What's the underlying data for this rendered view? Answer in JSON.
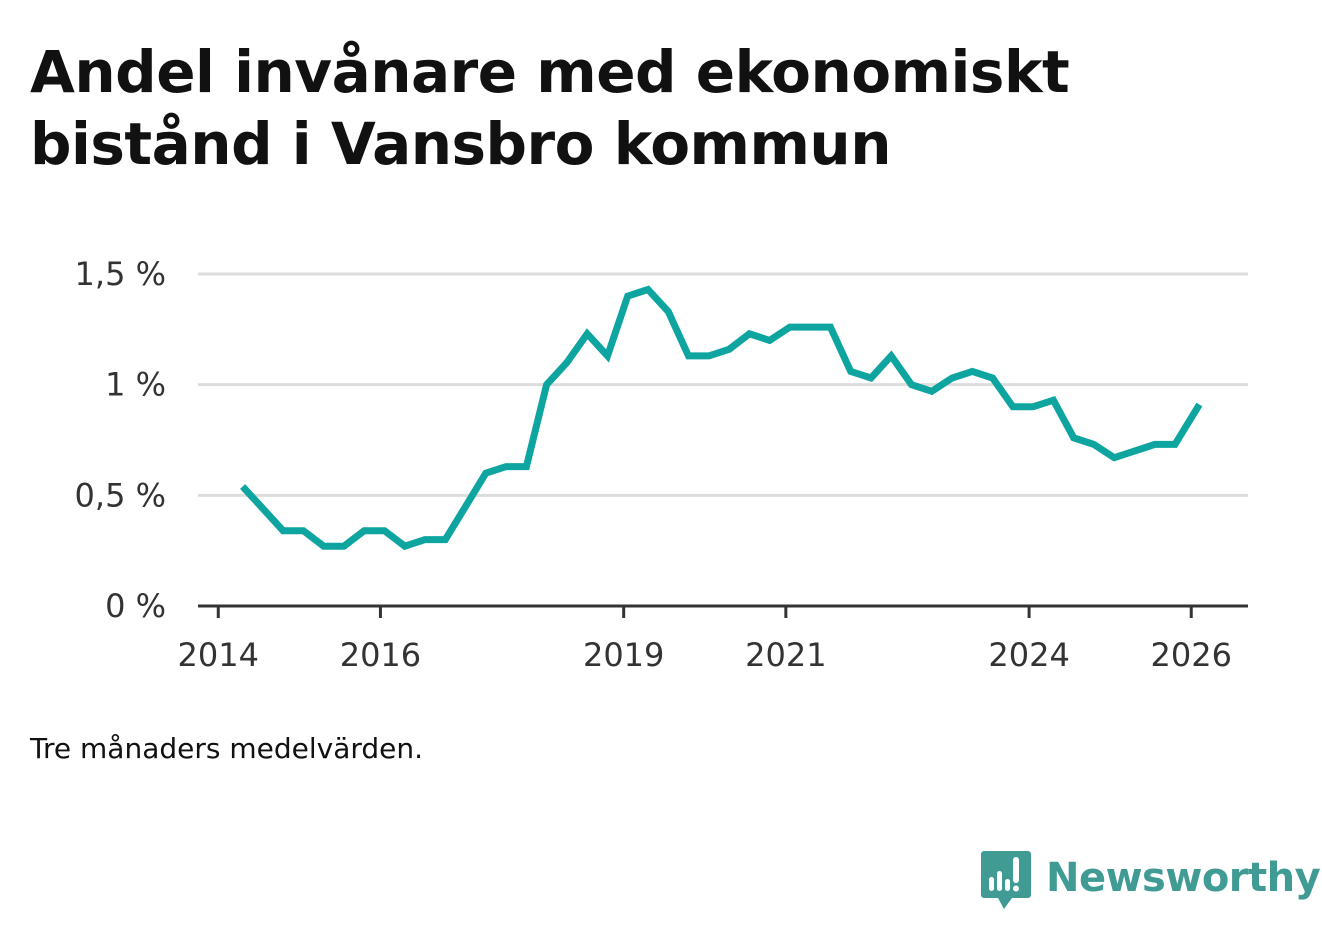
{
  "title": "Andel invånare med ekonomiskt bistånd i Vansbro kommun",
  "note": "Tre månaders medelvärden.",
  "brand": {
    "name": "Newsworthy",
    "icon": "newsworthy-logo-icon",
    "color": "#3f9b94"
  },
  "colors": {
    "line": "#0ea5a0",
    "grid": "#dddddd",
    "axis": "#333333"
  },
  "chart_data": {
    "type": "line",
    "title": "Andel invånare med ekonomiskt bistånd i Vansbro kommun",
    "xlabel": "",
    "ylabel": "",
    "ylim": [
      0,
      1.5
    ],
    "xlim": [
      2013.75,
      2026.7
    ],
    "grid": true,
    "legend": "none",
    "y_ticks": [
      {
        "value": 0,
        "label": "0 %"
      },
      {
        "value": 0.5,
        "label": "0,5 %"
      },
      {
        "value": 1,
        "label": "1 %"
      },
      {
        "value": 1.5,
        "label": "1,5 %"
      }
    ],
    "x_ticks": [
      {
        "value": 2014,
        "label": "2014"
      },
      {
        "value": 2016,
        "label": "2016"
      },
      {
        "value": 2019,
        "label": "2019"
      },
      {
        "value": 2021,
        "label": "2021"
      },
      {
        "value": 2024,
        "label": "2024"
      },
      {
        "value": 2026,
        "label": "2026"
      }
    ],
    "series": [
      {
        "name": "Andel invånare med ekonomiskt bistånd",
        "x": [
          2014.3,
          2014.55,
          2014.8,
          2015.05,
          2015.3,
          2015.55,
          2015.8,
          2016.05,
          2016.3,
          2016.55,
          2016.8,
          2017.05,
          2017.3,
          2017.55,
          2017.8,
          2018.05,
          2018.3,
          2018.55,
          2018.8,
          2019.05,
          2019.3,
          2019.55,
          2019.8,
          2020.05,
          2020.3,
          2020.55,
          2020.8,
          2021.05,
          2021.3,
          2021.55,
          2021.8,
          2022.05,
          2022.3,
          2022.55,
          2022.8,
          2023.05,
          2023.3,
          2023.55,
          2023.8,
          2024.05,
          2024.3,
          2024.55,
          2024.8,
          2025.05,
          2025.3,
          2025.55,
          2025.8,
          2026.1
        ],
        "values": [
          0.54,
          0.44,
          0.34,
          0.34,
          0.27,
          0.27,
          0.34,
          0.34,
          0.27,
          0.3,
          0.3,
          0.45,
          0.6,
          0.63,
          0.63,
          1.0,
          1.1,
          1.23,
          1.13,
          1.4,
          1.43,
          1.33,
          1.13,
          1.13,
          1.16,
          1.23,
          1.2,
          1.26,
          1.26,
          1.26,
          1.06,
          1.03,
          1.13,
          1.0,
          0.97,
          1.03,
          1.06,
          1.03,
          0.9,
          0.9,
          0.93,
          0.76,
          0.73,
          0.67,
          0.7,
          0.73,
          0.73,
          0.91
        ]
      }
    ]
  }
}
